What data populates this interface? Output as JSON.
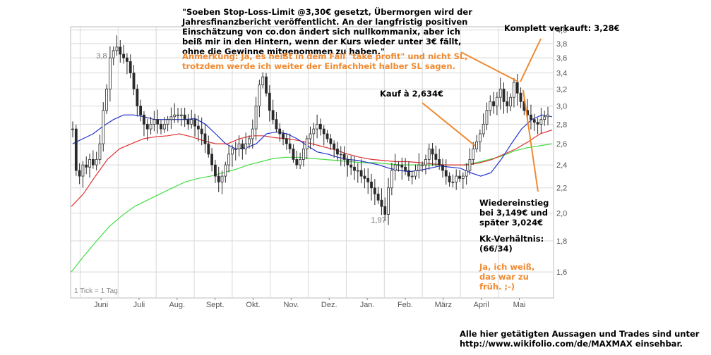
{
  "chart_data": {
    "type": "candlestick",
    "tick_note": "1 Tick = 1 Tag",
    "x_labels": [
      "Juni",
      "Juli",
      "Aug.",
      "Sept.",
      "Okt.",
      "Nov.",
      "Dez.",
      "Jan.",
      "Feb.",
      "März",
      "April",
      "Mai"
    ],
    "y_ticks": [
      "4,0",
      "3,8",
      "3,6",
      "3,4",
      "3,2",
      "3,0",
      "2,8",
      "2,6",
      "2,4",
      "2,2",
      "2,0",
      "1,8",
      "1,6"
    ],
    "ylim": [
      1.45,
      4.05
    ],
    "y_scale": "log",
    "grid": true,
    "high_label": "3,8",
    "low_label": "1,97",
    "close": [
      2.75,
      2.35,
      2.3,
      2.4,
      2.38,
      2.45,
      2.4,
      2.45,
      2.6,
      2.95,
      3.2,
      3.6,
      3.7,
      3.75,
      3.65,
      3.6,
      3.55,
      3.4,
      3.2,
      3.0,
      2.9,
      2.8,
      2.75,
      2.8,
      2.85,
      2.8,
      2.75,
      2.8,
      2.85,
      2.88,
      2.9,
      2.9,
      2.9,
      2.85,
      2.8,
      2.85,
      2.78,
      2.75,
      2.7,
      2.6,
      2.5,
      2.4,
      2.3,
      2.25,
      2.3,
      2.4,
      2.5,
      2.55,
      2.55,
      2.6,
      2.55,
      2.6,
      2.65,
      2.75,
      3.0,
      3.25,
      3.35,
      3.15,
      2.95,
      2.85,
      2.75,
      2.7,
      2.65,
      2.6,
      2.55,
      2.45,
      2.4,
      2.45,
      2.55,
      2.65,
      2.7,
      2.75,
      2.8,
      2.75,
      2.7,
      2.65,
      2.6,
      2.55,
      2.5,
      2.5,
      2.45,
      2.4,
      2.38,
      2.35,
      2.35,
      2.3,
      2.28,
      2.25,
      2.2,
      2.15,
      2.1,
      2.05,
      1.99,
      2.2,
      2.35,
      2.4,
      2.4,
      2.38,
      2.35,
      2.3,
      2.3,
      2.35,
      2.4,
      2.4,
      2.45,
      2.55,
      2.5,
      2.45,
      2.4,
      2.35,
      2.3,
      2.25,
      2.25,
      2.3,
      2.28,
      2.3,
      2.35,
      2.45,
      2.55,
      2.62,
      2.7,
      2.8,
      2.95,
      3.05,
      3.0,
      3.1,
      3.2,
      3.05,
      3.0,
      3.1,
      3.28,
      3.15,
      3.05,
      2.95,
      2.9,
      2.85,
      2.82,
      2.8,
      2.85,
      2.88,
      2.9
    ],
    "sma_short": [
      2.6,
      2.65,
      2.7,
      2.78,
      2.85,
      2.9,
      2.9,
      2.88,
      2.85,
      2.85,
      2.85,
      2.85,
      2.86,
      2.8,
      2.7,
      2.6,
      2.55,
      2.56,
      2.6,
      2.7,
      2.72,
      2.7,
      2.65,
      2.58,
      2.52,
      2.5,
      2.47,
      2.45,
      2.44,
      2.42,
      2.4,
      2.37,
      2.35,
      2.34,
      2.35,
      2.37,
      2.39,
      2.38,
      2.37,
      2.33,
      2.3,
      2.33,
      2.45,
      2.6,
      2.75,
      2.85,
      2.9,
      2.88
    ],
    "sma_mid": [
      2.05,
      2.15,
      2.3,
      2.45,
      2.55,
      2.6,
      2.65,
      2.67,
      2.68,
      2.7,
      2.67,
      2.63,
      2.6,
      2.6,
      2.65,
      2.68,
      2.68,
      2.66,
      2.65,
      2.63,
      2.6,
      2.57,
      2.54,
      2.5,
      2.47,
      2.45,
      2.44,
      2.43,
      2.43,
      2.42,
      2.41,
      2.4,
      2.4,
      2.4,
      2.42,
      2.45,
      2.5,
      2.55,
      2.62,
      2.7,
      2.74
    ],
    "sma_long": [
      1.6,
      1.7,
      1.8,
      1.9,
      1.98,
      2.05,
      2.1,
      2.15,
      2.2,
      2.25,
      2.28,
      2.3,
      2.33,
      2.36,
      2.4,
      2.43,
      2.46,
      2.47,
      2.47,
      2.46,
      2.45,
      2.44,
      2.43,
      2.42,
      2.42,
      2.41,
      2.4,
      2.4,
      2.4,
      2.4,
      2.4,
      2.4,
      2.42,
      2.45,
      2.48,
      2.53,
      2.56,
      2.58,
      2.6
    ]
  },
  "notes": {
    "quote": "\"Soeben Stop-Loss-Limit @3,30€ gesetzt, Übermorgen wird der\nJahresfinanzbericht veröffentlicht. An der langfristig positiven\nEinschätzung von co.don ändert sich nullkommanix, aber ich\nbeiß mir in den Hintern, wenn der Kurs wieder unter 3€ fällt,\nohne die Gewinne mitgenommen zu haben.\"",
    "remark": "Anmerkung: Ja, es heißt in dem Fall \"take profit\" und nicht SL,\ntrotzdem werde ich weiter der Einfachheit halber SL sagen.",
    "sold": "Komplett verkauft: 3,28€",
    "buy": "Kauf à 2,634€",
    "reentry": "Wiedereinstieg\nbei 3,149€ und\nspäter 3,024€",
    "kk": "Kk-Verhältnis:\n(66/34)",
    "joke": "Ja, ich weiß,\ndas war zu\nfrüh. ;-)",
    "footer": "Alle hier getätigten Aussagen und Trades sind unter\nhttp://www.wikifolio.com/de/MAXMAX einsehbar."
  },
  "colors": {
    "candle": "#2a2a2a",
    "sma_short": "#2233cc",
    "sma_mid": "#dd3333",
    "sma_long": "#44dd44",
    "grid": "#d8d8d8",
    "arrow": "#f08a30",
    "orange_text": "#f08a30"
  }
}
